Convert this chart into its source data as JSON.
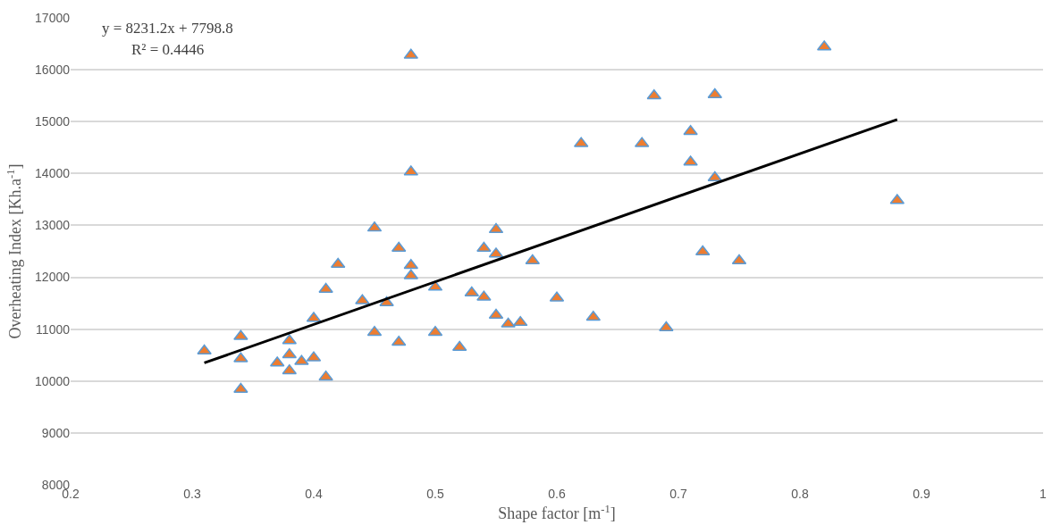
{
  "chart_data": {
    "type": "scatter",
    "xlabel": "Shape factor [m$^{-1}$]",
    "ylabel": "Overheating Index [Kh.a$^{-1}$]",
    "annotations": [
      "y = 8231.2x + 7798.8",
      "R² = 0.4446"
    ],
    "xlim": [
      0.2,
      1
    ],
    "xticks": [
      0.2,
      0.3,
      0.4,
      0.5,
      0.6,
      0.7,
      0.8,
      0.9,
      1
    ],
    "ylim": [
      8000,
      17000
    ],
    "yticks": [
      8000,
      9000,
      10000,
      11000,
      12000,
      13000,
      14000,
      15000,
      16000,
      17000
    ],
    "grid": "y",
    "marker": "triangle",
    "series": [
      {
        "color": "#ed7d31",
        "x": [
          0.31,
          0.34,
          0.34,
          0.34,
          0.37,
          0.38,
          0.38,
          0.38,
          0.39,
          0.4,
          0.4,
          0.41,
          0.41,
          0.42,
          0.44,
          0.45,
          0.45,
          0.46,
          0.47,
          0.47,
          0.48,
          0.48,
          0.48,
          0.48,
          0.5,
          0.5,
          0.52,
          0.53,
          0.54,
          0.54,
          0.55,
          0.55,
          0.55,
          0.56,
          0.57,
          0.58,
          0.6,
          0.62,
          0.63,
          0.67,
          0.68,
          0.69,
          0.71,
          0.71,
          0.72,
          0.73,
          0.73,
          0.75,
          0.82,
          0.88
        ],
        "values": [
          10580,
          10860,
          10430,
          9840,
          10350,
          10780,
          10510,
          10200,
          10380,
          11210,
          10450,
          11770,
          10080,
          12250,
          11550,
          12950,
          10940,
          11510,
          12560,
          10750,
          16280,
          14030,
          12230,
          12030,
          11810,
          10940,
          10650,
          11700,
          12560,
          11620,
          12920,
          12450,
          11270,
          11100,
          11130,
          12320,
          11600,
          14580,
          11230,
          14580,
          15500,
          11030,
          14810,
          14220,
          12490,
          15520,
          13920,
          12320,
          16440,
          13480
        ]
      },
      {
        "type": "line",
        "color": "#000000",
        "marker": "none",
        "line_style": "solid",
        "x": [
          0.31,
          0.88
        ],
        "values": [
          10350,
          15040
        ]
      }
    ]
  }
}
